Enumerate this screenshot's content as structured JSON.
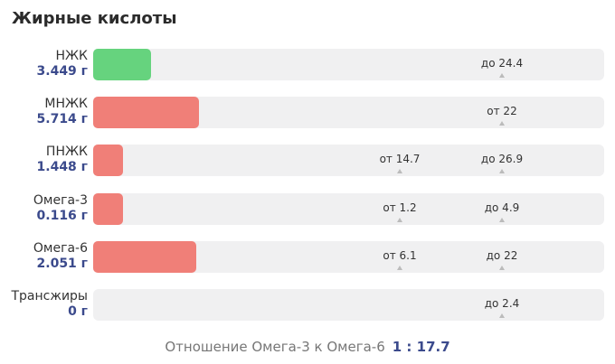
{
  "title": "Жирные кислоты",
  "rows": [
    {
      "name": "НЖК",
      "value": 3.449,
      "value_label": "3.449 г",
      "color": "#66d37e",
      "norms": [
        {
          "value": 24.4,
          "label": "до 24.4"
        }
      ]
    },
    {
      "name": "МНЖК",
      "value": 5.714,
      "value_label": "5.714 г",
      "color": "#f07f78",
      "norms": [
        {
          "value": 22,
          "label": "от 22"
        }
      ]
    },
    {
      "name": "ПНЖК",
      "value": 1.448,
      "value_label": "1.448 г",
      "color": "#f07f78",
      "norms": [
        {
          "value": 14.7,
          "label": "от 14.7"
        },
        {
          "value": 26.9,
          "label": "до 26.9"
        }
      ]
    },
    {
      "name": "Омега-3",
      "value": 0.116,
      "value_label": "0.116 г",
      "color": "#f07f78",
      "norms": [
        {
          "value": 1.2,
          "label": "от 1.2"
        },
        {
          "value": 4.9,
          "label": "до 4.9"
        }
      ]
    },
    {
      "name": "Омега-6",
      "value": 2.051,
      "value_label": "2.051 г",
      "color": "#f07f78",
      "norms": [
        {
          "value": 6.1,
          "label": "от 6.1"
        },
        {
          "value": 22,
          "label": "до 22"
        }
      ]
    },
    {
      "name": "Трансжиры",
      "value": 0,
      "value_label": "0 г",
      "color": "#f07f78",
      "norms": [
        {
          "value": 2.4,
          "label": "до 2.4"
        }
      ]
    }
  ],
  "ratio": {
    "label": "Отношение Омега-3 к Омега-6",
    "value": "1 : 17.7"
  }
}
